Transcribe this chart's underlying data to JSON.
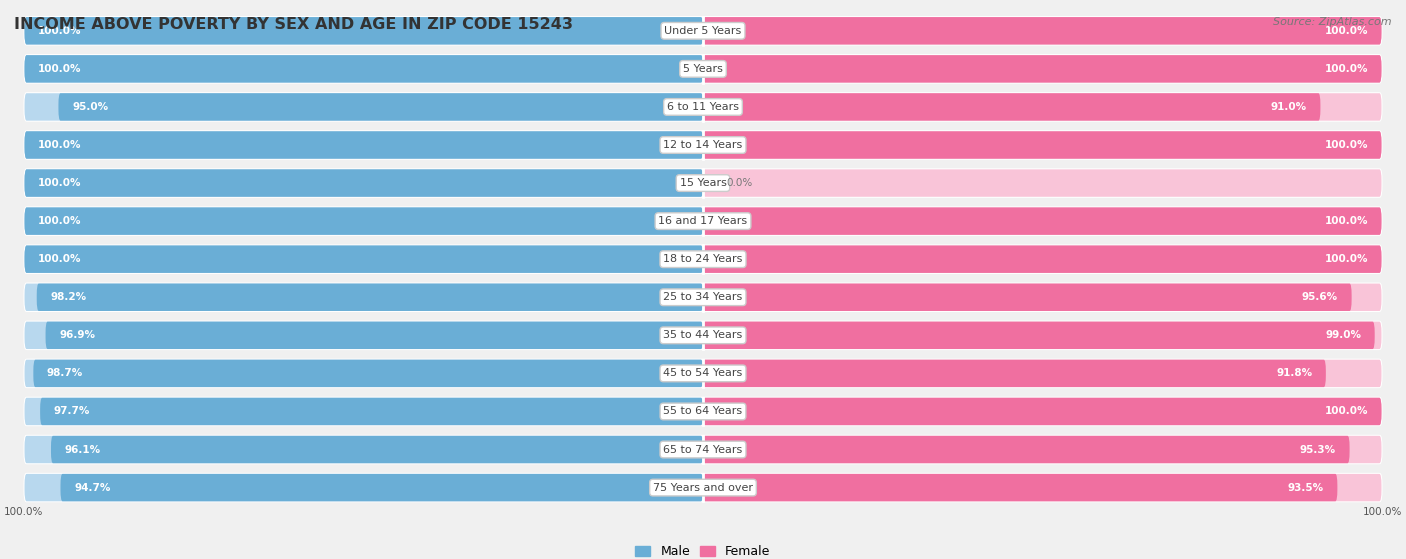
{
  "title": "INCOME ABOVE POVERTY BY SEX AND AGE IN ZIP CODE 15243",
  "source": "Source: ZipAtlas.com",
  "categories": [
    "Under 5 Years",
    "5 Years",
    "6 to 11 Years",
    "12 to 14 Years",
    "15 Years",
    "16 and 17 Years",
    "18 to 24 Years",
    "25 to 34 Years",
    "35 to 44 Years",
    "45 to 54 Years",
    "55 to 64 Years",
    "65 to 74 Years",
    "75 Years and over"
  ],
  "male_values": [
    100.0,
    100.0,
    95.0,
    100.0,
    100.0,
    100.0,
    100.0,
    98.2,
    96.9,
    98.7,
    97.7,
    96.1,
    94.7
  ],
  "female_values": [
    100.0,
    100.0,
    91.0,
    100.0,
    0.0,
    100.0,
    100.0,
    95.6,
    99.0,
    91.8,
    100.0,
    95.3,
    93.5
  ],
  "male_color": "#6aaed6",
  "female_color": "#f06fa0",
  "male_color_light": "#b8d8ee",
  "female_color_light": "#f9c4d8",
  "row_bg": "#ebebeb",
  "background_color": "#f0f0f0",
  "title_fontsize": 11.5,
  "label_fontsize": 8.0,
  "value_fontsize": 7.5,
  "legend_male": "Male",
  "legend_female": "Female",
  "bottom_left_label": "100.0%",
  "bottom_right_label": "100.0%"
}
